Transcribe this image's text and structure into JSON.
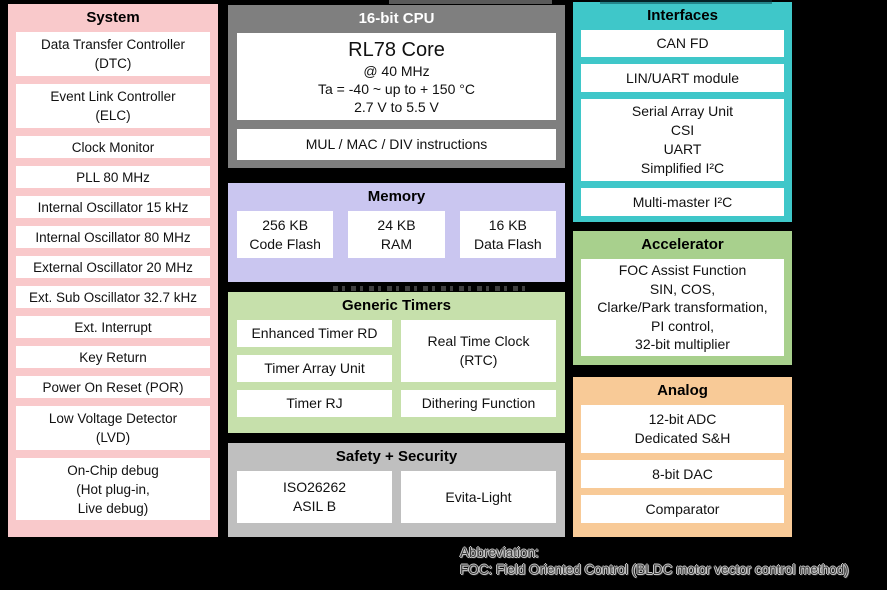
{
  "panels": {
    "system": {
      "title": "System",
      "items": [
        "Data Transfer Controller\n(DTC)",
        "Event Link Controller\n(ELC)",
        "Clock Monitor",
        "PLL 80 MHz",
        "Internal Oscillator 15 kHz",
        "Internal Oscillator 80 MHz",
        "External Oscillator 20 MHz",
        "Ext. Sub Oscillator 32.7 kHz",
        "Ext. Interrupt",
        "Key Return",
        "Power On Reset (POR)",
        "Low Voltage Detector\n(LVD)",
        "On-Chip debug\n(Hot plug-in,\nLive debug)"
      ]
    },
    "cpu": {
      "title": "16-bit CPU",
      "core_title": "RL78 Core",
      "core_details": "@ 40 MHz\nTa = -40 ~ up to + 150 °C\n2.7 V to 5.5 V",
      "instructions": "MUL / MAC / DIV instructions"
    },
    "memory": {
      "title": "Memory",
      "items": [
        "256 KB\nCode Flash",
        "24 KB\nRAM",
        "16 KB\nData Flash"
      ]
    },
    "generic_timers": {
      "title": "Generic Timers",
      "left_items": [
        "Enhanced Timer RD",
        "Timer Array Unit",
        "Timer RJ"
      ],
      "rtc": "Real Time Clock\n(RTC)",
      "dithering": "Dithering Function"
    },
    "safety_security": {
      "title": "Safety + Security",
      "items": [
        "ISO26262\nASIL B",
        "Evita-Light"
      ]
    },
    "interfaces": {
      "title": "Interfaces",
      "items": [
        "CAN FD",
        "LIN/UART module",
        "Serial Array Unit\nCSI\nUART\nSimplified I²C",
        "Multi-master I²C"
      ]
    },
    "accelerator": {
      "title": "Accelerator",
      "detail": "FOC Assist Function\nSIN, COS,\nClarke/Park transformation,\nPI control,\n32-bit multiplier"
    },
    "analog": {
      "title": "Analog",
      "items": [
        "12-bit ADC\nDedicated S&H",
        "8-bit DAC",
        "Comparator"
      ]
    }
  },
  "footer": {
    "line1": "Abbreviation:",
    "line2": "FOC: Field Oriented Control (BLDC motor vector control method)"
  },
  "colors": {
    "background": "#000000",
    "system_pink": "#f9c9cb",
    "cpu_gray": "#7f7f7f",
    "memory_lavender": "#cac6f0",
    "timers_green": "#c6e0ab",
    "safety_gray": "#bfbfbf",
    "interfaces_teal": "#3fc7c9",
    "accelerator_green": "#a8d08d",
    "analog_orange": "#f8ca97",
    "box_white": "#ffffff"
  }
}
